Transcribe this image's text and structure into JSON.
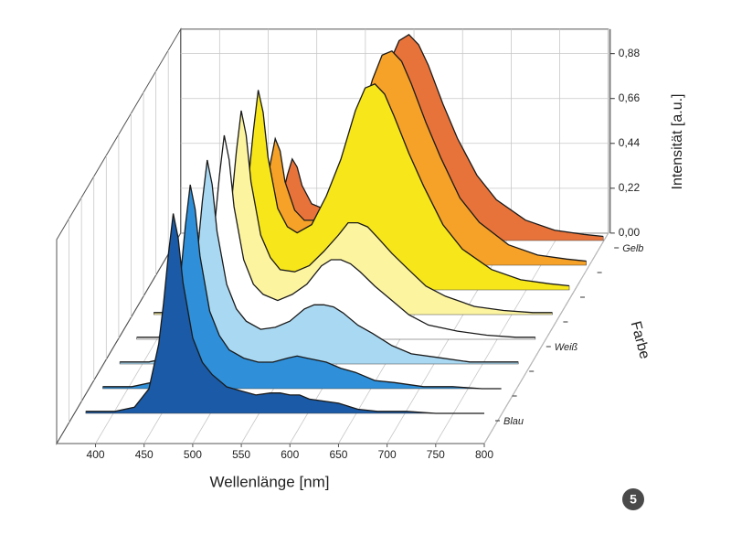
{
  "chart_data": {
    "type": "waterfall",
    "xlabel": "Wellenlänge [nm]",
    "ylabel": "Intensität [a.u.]",
    "zlabel": "Farbe",
    "badge": "5",
    "xlim": [
      360,
      800
    ],
    "xticks": [
      400,
      450,
      500,
      550,
      600,
      650,
      700,
      750,
      800
    ],
    "ylim": [
      0,
      1
    ],
    "yticks": [
      {
        "value": 0,
        "label": "0,00"
      },
      {
        "value": 0.22,
        "label": "0,22"
      },
      {
        "value": 0.44,
        "label": "0,44"
      },
      {
        "value": 0.66,
        "label": "0,66"
      },
      {
        "value": 0.88,
        "label": "0,88"
      }
    ],
    "grid": true,
    "zcategories": [
      "Blau",
      null,
      null,
      "Weiß",
      null,
      null,
      null,
      "Gelb"
    ],
    "x": [
      390,
      420,
      440,
      455,
      465,
      470,
      475,
      480,
      485,
      490,
      500,
      510,
      520,
      535,
      550,
      565,
      580,
      590,
      600,
      610,
      620,
      635,
      650,
      670,
      690,
      720,
      750,
      780,
      800
    ],
    "series": [
      {
        "color": "#1a5aa6",
        "values": [
          0.01,
          0.01,
          0.03,
          0.12,
          0.34,
          0.54,
          0.78,
          0.98,
          0.86,
          0.64,
          0.37,
          0.25,
          0.19,
          0.13,
          0.11,
          0.09,
          0.1,
          0.1,
          0.09,
          0.09,
          0.07,
          0.06,
          0.05,
          0.02,
          0.01,
          0.01,
          0,
          0,
          0
        ]
      },
      {
        "color": "#2f8fd8",
        "values": [
          0.01,
          0.01,
          0.03,
          0.12,
          0.35,
          0.55,
          0.8,
          1.0,
          0.88,
          0.65,
          0.38,
          0.26,
          0.19,
          0.15,
          0.13,
          0.13,
          0.15,
          0.16,
          0.15,
          0.14,
          0.13,
          0.1,
          0.08,
          0.04,
          0.03,
          0.01,
          0.01,
          0,
          0
        ]
      },
      {
        "color": "#a9d8f2",
        "values": [
          0.01,
          0.01,
          0.03,
          0.12,
          0.35,
          0.55,
          0.8,
          1.0,
          0.88,
          0.65,
          0.39,
          0.27,
          0.21,
          0.17,
          0.18,
          0.21,
          0.27,
          0.29,
          0.29,
          0.28,
          0.25,
          0.19,
          0.15,
          0.09,
          0.05,
          0.03,
          0.01,
          0.01,
          0.01
        ]
      },
      {
        "color": "#ffffff",
        "values": [
          0.01,
          0.01,
          0.03,
          0.12,
          0.35,
          0.55,
          0.8,
          1.0,
          0.88,
          0.65,
          0.39,
          0.27,
          0.22,
          0.19,
          0.22,
          0.27,
          0.36,
          0.39,
          0.39,
          0.37,
          0.33,
          0.26,
          0.2,
          0.12,
          0.07,
          0.04,
          0.02,
          0.01,
          0.01
        ]
      },
      {
        "color": "#fdf4a0",
        "values": [
          0.01,
          0.01,
          0.03,
          0.12,
          0.35,
          0.55,
          0.8,
          1.0,
          0.88,
          0.65,
          0.39,
          0.28,
          0.22,
          0.21,
          0.24,
          0.31,
          0.39,
          0.45,
          0.45,
          0.43,
          0.38,
          0.3,
          0.23,
          0.14,
          0.09,
          0.04,
          0.02,
          0.01,
          0.01
        ]
      },
      {
        "color": "#f7e61a",
        "values": [
          0.01,
          0.01,
          0.03,
          0.12,
          0.34,
          0.54,
          0.78,
          0.98,
          0.87,
          0.65,
          0.4,
          0.31,
          0.28,
          0.32,
          0.46,
          0.64,
          0.88,
          0.99,
          1.01,
          0.96,
          0.85,
          0.67,
          0.51,
          0.32,
          0.2,
          0.1,
          0.05,
          0.03,
          0.02
        ]
      },
      {
        "color": "#f6a128",
        "values": [
          0.01,
          0.01,
          0.02,
          0.07,
          0.22,
          0.34,
          0.5,
          0.62,
          0.56,
          0.41,
          0.27,
          0.22,
          0.22,
          0.28,
          0.45,
          0.66,
          0.91,
          1.03,
          1.05,
          1.0,
          0.89,
          0.7,
          0.53,
          0.33,
          0.21,
          0.1,
          0.05,
          0.03,
          0.02
        ]
      },
      {
        "color": "#e8733a",
        "values": [
          0,
          0,
          0.01,
          0.05,
          0.14,
          0.22,
          0.32,
          0.4,
          0.36,
          0.27,
          0.18,
          0.16,
          0.17,
          0.25,
          0.41,
          0.62,
          0.87,
          0.98,
          1.01,
          0.96,
          0.86,
          0.67,
          0.5,
          0.32,
          0.2,
          0.1,
          0.05,
          0.03,
          0.02
        ]
      }
    ]
  }
}
